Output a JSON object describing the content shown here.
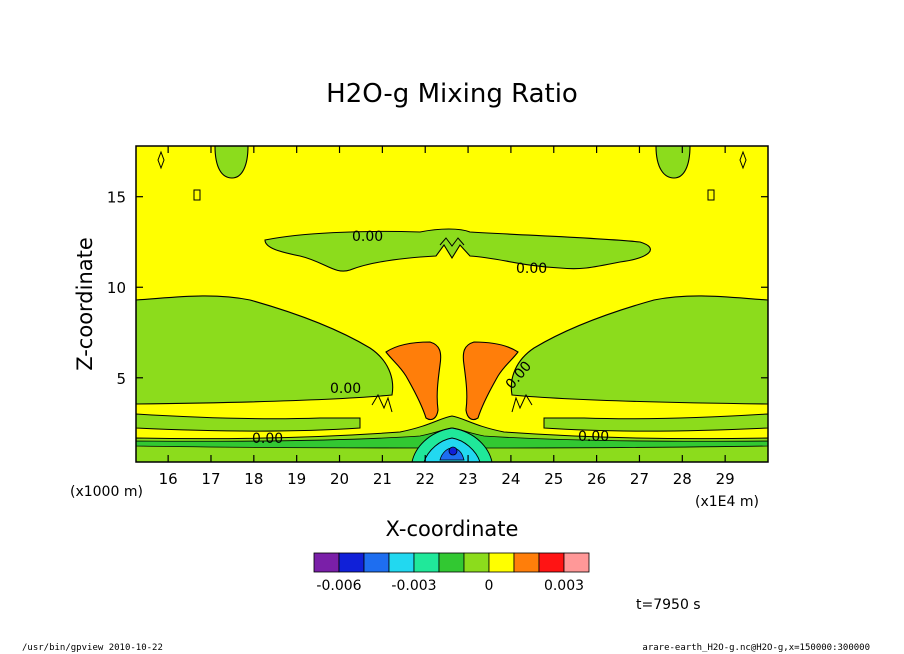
{
  "chart_data": {
    "type": "contour",
    "title": "H2O-g Mixing Ratio",
    "xlabel": "X-coordinate",
    "ylabel": "Z-coordinate",
    "x_unit": "(x1E4 m)",
    "y_unit": "(x1000 m)",
    "xlim": [
      15.25,
      30.0
    ],
    "ylim": [
      0.35,
      17.8
    ],
    "x_ticks": [
      16,
      17,
      18,
      19,
      20,
      21,
      22,
      23,
      24,
      25,
      26,
      27,
      28,
      29
    ],
    "y_ticks": [
      5,
      10,
      15
    ],
    "contour_labels": [
      "0.00",
      "0.00",
      "0.00",
      "0.00",
      "0.00",
      "0.00"
    ],
    "colorbar": {
      "levels": [
        -0.007,
        -0.006,
        -0.005,
        -0.004,
        -0.003,
        -0.002,
        -0.001,
        0,
        0.001,
        0.002,
        0.003,
        0.004
      ],
      "tick_labels": [
        "-0.006",
        "-0.003",
        "0",
        "0.003"
      ],
      "colors": [
        "#7a1fa8",
        "#1020d8",
        "#1e6ef0",
        "#22d8f0",
        "#20e89a",
        "#32c832",
        "#8cdc1c",
        "#ffff00",
        "#ff7e0a",
        "#ff1414",
        "#ff9898"
      ]
    },
    "time_label": "t=7950 s"
  },
  "footer": {
    "left": "/usr/bin/gpview   2010-10-22",
    "right": "arare-earth_H2O-g.nc@H2O-g,x=150000:300000"
  }
}
